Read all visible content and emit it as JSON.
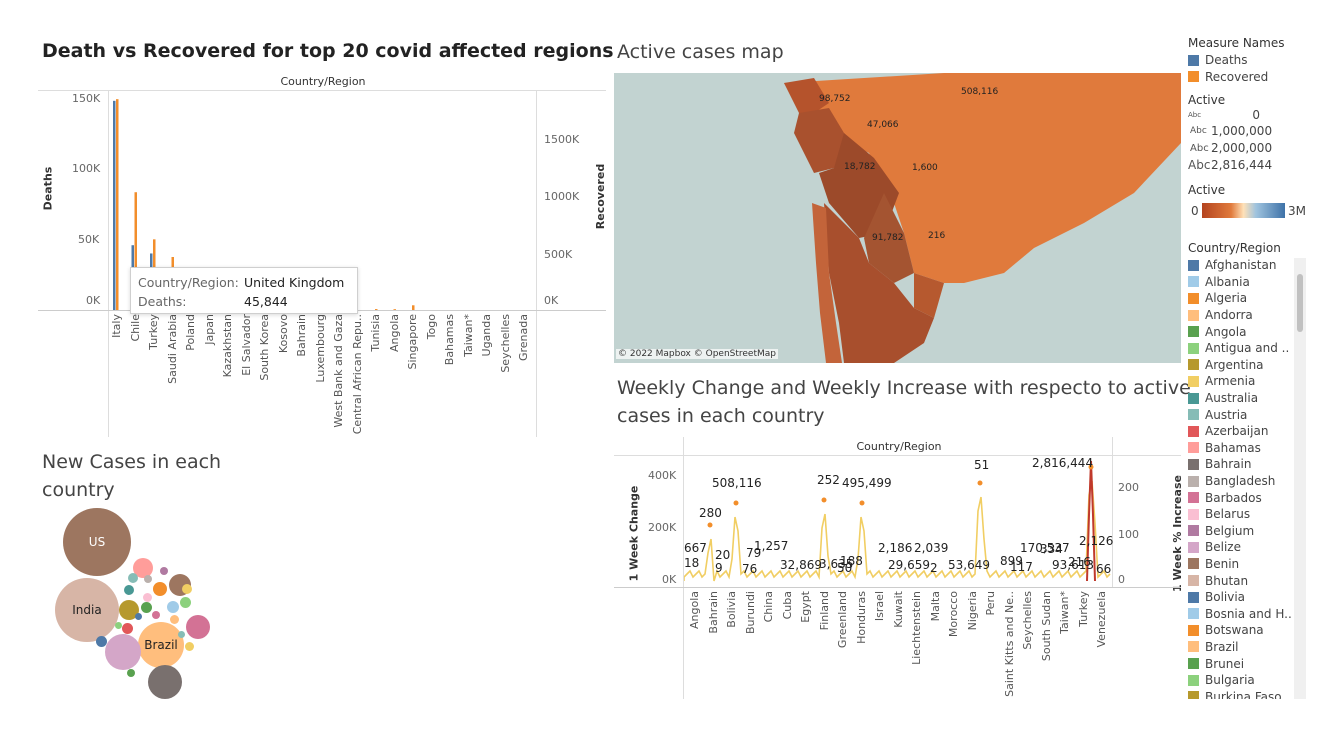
{
  "titles": {
    "deaths_vs_recovered": "Death vs Recovered for top 20 covid affected regions",
    "active_map": "Active cases map",
    "weekly_line1": "Weekly Change and Weekly Increase with respecto to active",
    "weekly_line2": "cases in each country",
    "new_cases_line1": "New Cases in each",
    "new_cases_line2": "country"
  },
  "bar_chart": {
    "header": "Country/Region",
    "left_axis_title": "Deaths",
    "right_axis_title": "Recovered",
    "left_ticks": [
      "150K",
      "100K",
      "50K",
      "0K"
    ],
    "right_ticks": [
      "1500K",
      "1000K",
      "500K",
      "0K"
    ],
    "tooltip": {
      "k1": "Country/Region:",
      "v1": "United Kingdom",
      "k2": "Deaths:",
      "v2": "45,844"
    },
    "colors": {
      "deaths": "#4e79a7",
      "recovered": "#f28e2b"
    }
  },
  "chart_data": [
    {
      "type": "bar",
      "title": "Death vs Recovered for top 20 covid affected regions",
      "xlabel": "Country/Region",
      "ylabel": "Deaths",
      "y2label": "Recovered",
      "ylim": [
        0,
        150000
      ],
      "y2lim": [
        0,
        1800000
      ],
      "categories": [
        "Italy",
        "Chile",
        "Turkey",
        "Saudi Arabia",
        "Poland",
        "Japan",
        "Kazakhstan",
        "El Salvador",
        "South Korea",
        "Kosovo",
        "Bahrain",
        "Luxembourg",
        "West Bank and Gaza",
        "Central African Repu..",
        "Tunisia",
        "Angola",
        "Singapore",
        "Togo",
        "Bahamas",
        "Taiwan*",
        "Uganda",
        "Seychelles",
        "Grenada"
      ],
      "series": [
        {
          "name": "Deaths",
          "values": [
            148000,
            45844,
            40000,
            30000,
            27000,
            23000,
            0,
            0,
            0,
            0,
            0,
            0,
            0,
            0,
            0,
            0,
            0,
            0,
            0,
            0,
            0,
            0,
            0
          ]
        },
        {
          "name": "Recovered",
          "values": [
            1790000,
            1000000,
            600000,
            450000,
            300000,
            250000,
            0,
            0,
            0,
            0,
            0,
            0,
            0,
            0,
            8000,
            7000,
            40000,
            0,
            0,
            0,
            0,
            0,
            0
          ]
        }
      ]
    },
    {
      "type": "line",
      "title": "Weekly Change and Weekly Increase with respecto to active cases in each country",
      "xlabel": "Country/Region",
      "ylabel": "1 Week Change",
      "y2label": "1 Week % Increase",
      "ylim": [
        0,
        460000
      ],
      "y2lim": [
        0,
        280
      ],
      "categories": [
        "Angola",
        "Bahrain",
        "Bolivia",
        "Burundi",
        "China",
        "Cuba",
        "Egypt",
        "Finland",
        "Greenland",
        "Honduras",
        "Israel",
        "Kuwait",
        "Liechtenstein",
        "Malta",
        "Morocco",
        "Nigeria",
        "Peru",
        "Saint Kitts and Ne..",
        "Seychelles",
        "South Sudan",
        "Taiwan*",
        "Turkey",
        "Venezuela"
      ],
      "labels": [
        "667",
        "18",
        "280",
        "20",
        "9",
        "508,116",
        "79",
        "76",
        "1,257",
        "32,869",
        "3,635",
        "50",
        "252",
        "188",
        "495,499",
        "2,186",
        "29,659",
        "2,039",
        "2",
        "53,649",
        "51",
        "899",
        "117",
        "170,537",
        "334",
        "93,613",
        "216",
        "2,816,444",
        "2,126",
        "66"
      ],
      "ticks_left": [
        "400K",
        "200K",
        "0K"
      ],
      "ticks_right": [
        "200",
        "100",
        "0"
      ]
    }
  ],
  "map": {
    "attribution": "© 2022 Mapbox © OpenStreetMap",
    "labels": [
      "98,752",
      "508,116",
      "47,066",
      "18,782",
      "1,600",
      "91,782",
      "216"
    ]
  },
  "bubbles": {
    "us": "US",
    "india": "India",
    "brazil": "Brazil"
  },
  "legend": {
    "measure_names_title": "Measure Names",
    "measures": [
      {
        "label": "Deaths",
        "color": "#4e79a7"
      },
      {
        "label": "Recovered",
        "color": "#f28e2b"
      }
    ],
    "active_size_title": "Active",
    "size_prefix": "Abc",
    "size_items": [
      "0",
      "1,000,000",
      "2,000,000",
      "2,816,444"
    ],
    "active_color_title": "Active",
    "color_min": "0",
    "color_max": "3M",
    "country_title": "Country/Region",
    "countries": [
      {
        "label": "Afghanistan",
        "color": "#4e79a7"
      },
      {
        "label": "Albania",
        "color": "#a0cbe8"
      },
      {
        "label": "Algeria",
        "color": "#f28e2b"
      },
      {
        "label": "Andorra",
        "color": "#ffbe7d"
      },
      {
        "label": "Angola",
        "color": "#59a14f"
      },
      {
        "label": "Antigua and ..",
        "color": "#8cd17d"
      },
      {
        "label": "Argentina",
        "color": "#b6992d"
      },
      {
        "label": "Armenia",
        "color": "#f1ce63"
      },
      {
        "label": "Australia",
        "color": "#499894"
      },
      {
        "label": "Austria",
        "color": "#86bcb6"
      },
      {
        "label": "Azerbaijan",
        "color": "#e15759"
      },
      {
        "label": "Bahamas",
        "color": "#ff9d9a"
      },
      {
        "label": "Bahrain",
        "color": "#79706e"
      },
      {
        "label": "Bangladesh",
        "color": "#bab0ac"
      },
      {
        "label": "Barbados",
        "color": "#d37295"
      },
      {
        "label": "Belarus",
        "color": "#fabfd2"
      },
      {
        "label": "Belgium",
        "color": "#b07aa1"
      },
      {
        "label": "Belize",
        "color": "#d4a6c8"
      },
      {
        "label": "Benin",
        "color": "#9d7660"
      },
      {
        "label": "Bhutan",
        "color": "#d7b5a6"
      },
      {
        "label": "Bolivia",
        "color": "#4e79a7"
      },
      {
        "label": "Bosnia and H..",
        "color": "#a0cbe8"
      },
      {
        "label": "Botswana",
        "color": "#f28e2b"
      },
      {
        "label": "Brazil",
        "color": "#ffbe7d"
      },
      {
        "label": "Brunei",
        "color": "#59a14f"
      },
      {
        "label": "Bulgaria",
        "color": "#8cd17d"
      },
      {
        "label": "Burkina Faso",
        "color": "#b6992d"
      }
    ]
  }
}
